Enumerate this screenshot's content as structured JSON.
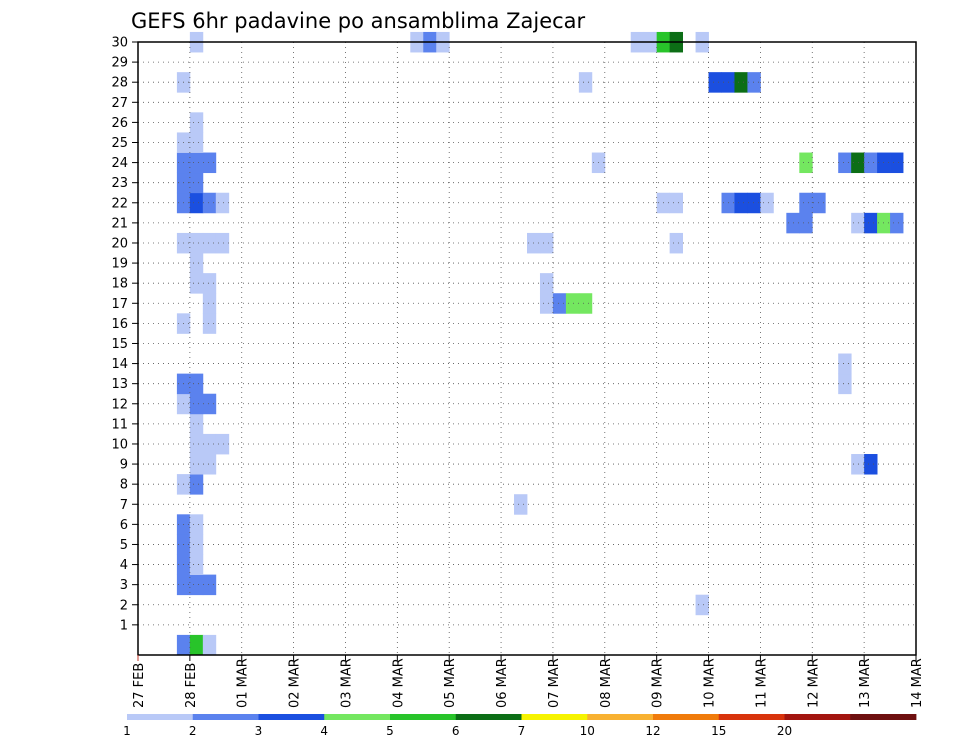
{
  "chart_data": {
    "type": "heatmap",
    "title": "GEFS 6hr padavine po ansamblima Zajecar",
    "xlabel": "",
    "ylabel": "",
    "x_tick_labels": [
      "27 FEB",
      "28 FEB",
      "01 MAR",
      "02 MAR",
      "03 MAR",
      "04 MAR",
      "05 MAR",
      "06 MAR",
      "07 MAR",
      "08 MAR",
      "09 MAR",
      "10 MAR",
      "11 MAR",
      "12 MAR",
      "13 MAR",
      "14 MAR"
    ],
    "y_tick_labels": [
      "1",
      "2",
      "3",
      "4",
      "5",
      "6",
      "7",
      "8",
      "9",
      "10",
      "11",
      "12",
      "13",
      "14",
      "15",
      "16",
      "17",
      "18",
      "19",
      "20",
      "21",
      "22",
      "23",
      "24",
      "25",
      "26",
      "27",
      "28",
      "29",
      "30"
    ],
    "y_range": [
      0,
      30
    ],
    "time_steps_per_day": 4,
    "grid": true,
    "colorbar": {
      "levels": [
        "1",
        "2",
        "3",
        "4",
        "5",
        "6",
        "7",
        "10",
        "12",
        "15",
        "20"
      ],
      "colors": [
        "#b9c9f7",
        "#5b82ee",
        "#1b4fe0",
        "#74e760",
        "#28c42a",
        "#0c6e16",
        "#f6f300",
        "#f8b131",
        "#f07b0b",
        "#d8330c",
        "#a3150f",
        "#6e1010"
      ]
    },
    "cells": [
      {
        "member": 0,
        "step": 3,
        "class": 1
      },
      {
        "member": 0,
        "step": 4,
        "class": 4
      },
      {
        "member": 0,
        "step": 5,
        "class": 0
      },
      {
        "member": 2,
        "step": 43,
        "class": 0
      },
      {
        "member": 3,
        "step": 3,
        "class": 1
      },
      {
        "member": 3,
        "step": 4,
        "class": 1
      },
      {
        "member": 3,
        "step": 5,
        "class": 1
      },
      {
        "member": 4,
        "step": 3,
        "class": 1
      },
      {
        "member": 4,
        "step": 4,
        "class": 0
      },
      {
        "member": 5,
        "step": 3,
        "class": 1
      },
      {
        "member": 5,
        "step": 4,
        "class": 0
      },
      {
        "member": 6,
        "step": 3,
        "class": 1
      },
      {
        "member": 6,
        "step": 4,
        "class": 0
      },
      {
        "member": 7,
        "step": 29,
        "class": 0
      },
      {
        "member": 8,
        "step": 3,
        "class": 0
      },
      {
        "member": 8,
        "step": 4,
        "class": 1
      },
      {
        "member": 9,
        "step": 4,
        "class": 0
      },
      {
        "member": 9,
        "step": 5,
        "class": 0
      },
      {
        "member": 9,
        "step": 55,
        "class": 0
      },
      {
        "member": 9,
        "step": 56,
        "class": 2
      },
      {
        "member": 10,
        "step": 4,
        "class": 0
      },
      {
        "member": 10,
        "step": 5,
        "class": 0
      },
      {
        "member": 10,
        "step": 6,
        "class": 0
      },
      {
        "member": 11,
        "step": 4,
        "class": 0
      },
      {
        "member": 12,
        "step": 3,
        "class": 0
      },
      {
        "member": 12,
        "step": 4,
        "class": 1
      },
      {
        "member": 12,
        "step": 5,
        "class": 1
      },
      {
        "member": 13,
        "step": 3,
        "class": 1
      },
      {
        "member": 13,
        "step": 4,
        "class": 1
      },
      {
        "member": 13,
        "step": 54,
        "class": 0
      },
      {
        "member": 14,
        "step": 54,
        "class": 0
      },
      {
        "member": 16,
        "step": 3,
        "class": 0
      },
      {
        "member": 16,
        "step": 5,
        "class": 0
      },
      {
        "member": 17,
        "step": 5,
        "class": 0
      },
      {
        "member": 17,
        "step": 31,
        "class": 0
      },
      {
        "member": 17,
        "step": 32,
        "class": 1
      },
      {
        "member": 17,
        "step": 33,
        "class": 3
      },
      {
        "member": 17,
        "step": 34,
        "class": 3
      },
      {
        "member": 18,
        "step": 4,
        "class": 0
      },
      {
        "member": 18,
        "step": 5,
        "class": 0
      },
      {
        "member": 18,
        "step": 31,
        "class": 0
      },
      {
        "member": 19,
        "step": 4,
        "class": 0
      },
      {
        "member": 20,
        "step": 3,
        "class": 0
      },
      {
        "member": 20,
        "step": 4,
        "class": 0
      },
      {
        "member": 20,
        "step": 5,
        "class": 0
      },
      {
        "member": 20,
        "step": 6,
        "class": 0
      },
      {
        "member": 20,
        "step": 30,
        "class": 0
      },
      {
        "member": 20,
        "step": 31,
        "class": 0
      },
      {
        "member": 20,
        "step": 41,
        "class": 0
      },
      {
        "member": 21,
        "step": 50,
        "class": 1
      },
      {
        "member": 21,
        "step": 51,
        "class": 1
      },
      {
        "member": 21,
        "step": 55,
        "class": 0
      },
      {
        "member": 21,
        "step": 56,
        "class": 2
      },
      {
        "member": 21,
        "step": 57,
        "class": 3
      },
      {
        "member": 21,
        "step": 58,
        "class": 1
      },
      {
        "member": 22,
        "step": 3,
        "class": 1
      },
      {
        "member": 22,
        "step": 4,
        "class": 2
      },
      {
        "member": 22,
        "step": 5,
        "class": 1
      },
      {
        "member": 22,
        "step": 6,
        "class": 0
      },
      {
        "member": 22,
        "step": 40,
        "class": 0
      },
      {
        "member": 22,
        "step": 41,
        "class": 0
      },
      {
        "member": 22,
        "step": 45,
        "class": 1
      },
      {
        "member": 22,
        "step": 46,
        "class": 2
      },
      {
        "member": 22,
        "step": 47,
        "class": 2
      },
      {
        "member": 22,
        "step": 48,
        "class": 0
      },
      {
        "member": 22,
        "step": 51,
        "class": 1
      },
      {
        "member": 22,
        "step": 52,
        "class": 1
      },
      {
        "member": 23,
        "step": 3,
        "class": 1
      },
      {
        "member": 23,
        "step": 4,
        "class": 1
      },
      {
        "member": 24,
        "step": 3,
        "class": 1
      },
      {
        "member": 24,
        "step": 4,
        "class": 1
      },
      {
        "member": 24,
        "step": 5,
        "class": 1
      },
      {
        "member": 24,
        "step": 35,
        "class": 0
      },
      {
        "member": 24,
        "step": 51,
        "class": 3
      },
      {
        "member": 24,
        "step": 54,
        "class": 1
      },
      {
        "member": 24,
        "step": 55,
        "class": 5
      },
      {
        "member": 24,
        "step": 56,
        "class": 1
      },
      {
        "member": 24,
        "step": 57,
        "class": 2
      },
      {
        "member": 24,
        "step": 58,
        "class": 2
      },
      {
        "member": 25,
        "step": 3,
        "class": 0
      },
      {
        "member": 25,
        "step": 4,
        "class": 0
      },
      {
        "member": 26,
        "step": 4,
        "class": 0
      },
      {
        "member": 28,
        "step": 3,
        "class": 0
      },
      {
        "member": 28,
        "step": 34,
        "class": 0
      },
      {
        "member": 28,
        "step": 44,
        "class": 2
      },
      {
        "member": 28,
        "step": 45,
        "class": 2
      },
      {
        "member": 28,
        "step": 46,
        "class": 5
      },
      {
        "member": 28,
        "step": 47,
        "class": 1
      },
      {
        "member": 30,
        "step": 4,
        "class": 0
      },
      {
        "member": 30,
        "step": 21,
        "class": 0
      },
      {
        "member": 30,
        "step": 22,
        "class": 1
      },
      {
        "member": 30,
        "step": 23,
        "class": 0
      },
      {
        "member": 30,
        "step": 38,
        "class": 0
      },
      {
        "member": 30,
        "step": 39,
        "class": 0
      },
      {
        "member": 30,
        "step": 40,
        "class": 4
      },
      {
        "member": 30,
        "step": 41,
        "class": 5
      },
      {
        "member": 30,
        "step": 43,
        "class": 0
      }
    ]
  }
}
